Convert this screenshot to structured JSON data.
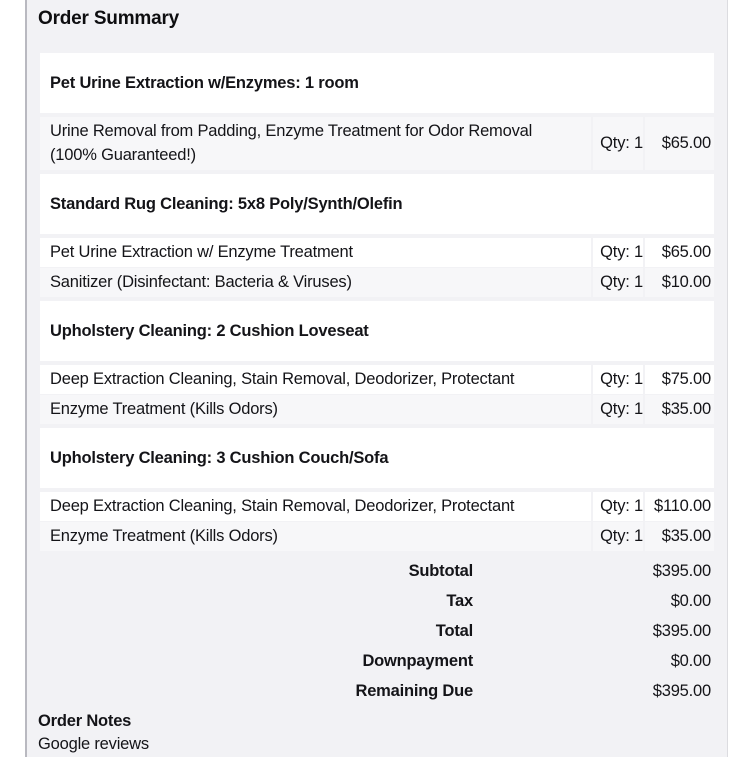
{
  "page": {
    "title": "Order Summary"
  },
  "order": {
    "sections": [
      {
        "title": "Pet Urine Extraction w/Enzymes: 1 room",
        "items": [
          {
            "name": "Urine Removal from Padding, Enzyme Treatment for Odor Removal (100% Guaranteed!)",
            "qty": "Qty: 1",
            "price": "$65.00"
          }
        ]
      },
      {
        "title": "Standard Rug Cleaning: 5x8 Poly/Synth/Olefin",
        "items": [
          {
            "name": "Pet Urine Extraction w/ Enzyme Treatment",
            "qty": "Qty: 1",
            "price": "$65.00"
          },
          {
            "name": "Sanitizer (Disinfectant: Bacteria & Viruses)",
            "qty": "Qty: 1",
            "price": "$10.00"
          }
        ]
      },
      {
        "title": "Upholstery Cleaning: 2 Cushion Loveseat",
        "items": [
          {
            "name": "Deep Extraction Cleaning, Stain Removal, Deodorizer, Protectant",
            "qty": "Qty: 1",
            "price": "$75.00"
          },
          {
            "name": "Enzyme Treatment (Kills Odors)",
            "qty": "Qty: 1",
            "price": "$35.00"
          }
        ]
      },
      {
        "title": "Upholstery Cleaning: 3 Cushion Couch/Sofa",
        "items": [
          {
            "name": "Deep Extraction Cleaning, Stain Removal, Deodorizer, Protectant",
            "qty": "Qty: 1",
            "price": "$110.00"
          },
          {
            "name": "Enzyme Treatment (Kills Odors)",
            "qty": "Qty: 1",
            "price": "$35.00"
          }
        ]
      }
    ],
    "totals": [
      {
        "label": "Subtotal",
        "value": "$395.00"
      },
      {
        "label": "Tax",
        "value": "$0.00"
      },
      {
        "label": "Total",
        "value": "$395.00"
      },
      {
        "label": "Downpayment",
        "value": "$0.00"
      },
      {
        "label": "Remaining Due",
        "value": "$395.00"
      }
    ],
    "notes": {
      "heading": "Order Notes",
      "text": "Google reviews"
    }
  },
  "colors": {
    "page_bg": "#f2f2f5",
    "row_shade": "#f7f7f9",
    "card": "#ffffff",
    "text": "#141418",
    "left_border": "#b9b9c0",
    "right_border": "#dcdce0"
  }
}
